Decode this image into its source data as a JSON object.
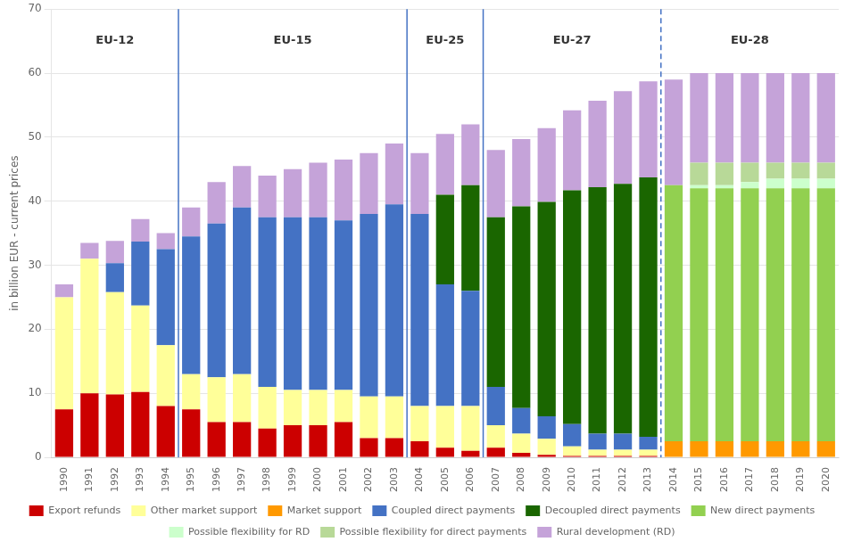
{
  "chart_data": {
    "type": "bar",
    "stacked": true,
    "categories": [
      "1990",
      "1991",
      "1992",
      "1993",
      "1994",
      "1995",
      "1996",
      "1997",
      "1998",
      "1999",
      "2000",
      "2001",
      "2002",
      "2003",
      "2004",
      "2005",
      "2006",
      "2007",
      "2008",
      "2009",
      "2010",
      "2011",
      "2012",
      "2013",
      "2014",
      "2015",
      "2016",
      "2017",
      "2018",
      "2019",
      "2020"
    ],
    "series": [
      {
        "name": "Export refunds",
        "color": "#cc0000",
        "values": [
          7.5,
          10.0,
          9.8,
          10.2,
          8.0,
          7.5,
          5.5,
          5.5,
          4.5,
          5.0,
          5.0,
          5.5,
          3.0,
          3.0,
          2.5,
          1.5,
          1.0,
          1.5,
          0.7,
          0.4,
          0.2,
          0.2,
          0.2,
          0.2,
          0.0,
          0.0,
          0.0,
          0.0,
          0.0,
          0.0,
          0.0
        ]
      },
      {
        "name": "Other market support",
        "color": "#ffff99",
        "values": [
          17.5,
          21.0,
          16.0,
          13.5,
          9.5,
          5.5,
          7.0,
          7.5,
          6.5,
          5.5,
          5.5,
          5.0,
          6.5,
          6.5,
          5.5,
          6.5,
          7.0,
          3.5,
          3.0,
          2.5,
          1.5,
          1.0,
          1.0,
          1.0,
          0.0,
          0.0,
          0.0,
          0.0,
          0.0,
          0.0,
          0.0
        ]
      },
      {
        "name": "Market support",
        "color": "#ff9900",
        "values": [
          0.0,
          0.0,
          0.0,
          0.0,
          0.0,
          0.0,
          0.0,
          0.0,
          0.0,
          0.0,
          0.0,
          0.0,
          0.0,
          0.0,
          0.0,
          0.0,
          0.0,
          0.0,
          0.0,
          0.0,
          0.0,
          0.0,
          0.0,
          0.0,
          2.5,
          2.5,
          2.5,
          2.5,
          2.5,
          2.5,
          2.5
        ]
      },
      {
        "name": "Coupled direct payments",
        "color": "#4472c4",
        "values": [
          0.0,
          0.0,
          4.5,
          10.0,
          15.0,
          21.5,
          24.0,
          26.0,
          26.5,
          27.0,
          27.0,
          26.5,
          28.5,
          30.0,
          30.0,
          19.0,
          18.0,
          6.0,
          4.0,
          3.5,
          3.5,
          2.5,
          2.5,
          2.0,
          0.0,
          0.0,
          0.0,
          0.0,
          0.0,
          0.0,
          0.0
        ]
      },
      {
        "name": "Decoupled direct payments",
        "color": "#1a6600",
        "values": [
          0.0,
          0.0,
          0.0,
          0.0,
          0.0,
          0.0,
          0.0,
          0.0,
          0.0,
          0.0,
          0.0,
          0.0,
          0.0,
          0.0,
          0.0,
          14.0,
          16.5,
          26.5,
          31.5,
          33.5,
          36.5,
          38.5,
          39.0,
          40.5,
          0.0,
          0.0,
          0.0,
          0.0,
          0.0,
          0.0,
          0.0
        ]
      },
      {
        "name": "New direct payments",
        "color": "#92d050",
        "values": [
          0.0,
          0.0,
          0.0,
          0.0,
          0.0,
          0.0,
          0.0,
          0.0,
          0.0,
          0.0,
          0.0,
          0.0,
          0.0,
          0.0,
          0.0,
          0.0,
          0.0,
          0.0,
          0.0,
          0.0,
          0.0,
          0.0,
          0.0,
          0.0,
          40.0,
          39.5,
          39.5,
          39.5,
          39.5,
          39.5,
          39.5
        ]
      },
      {
        "name": "Possible flexibility for RD",
        "color": "#ccffcc",
        "values": [
          0.0,
          0.0,
          0.0,
          0.0,
          0.0,
          0.0,
          0.0,
          0.0,
          0.0,
          0.0,
          0.0,
          0.0,
          0.0,
          0.0,
          0.0,
          0.0,
          0.0,
          0.0,
          0.0,
          0.0,
          0.0,
          0.0,
          0.0,
          0.0,
          0.0,
          0.5,
          0.5,
          1.0,
          1.5,
          1.5,
          1.5
        ]
      },
      {
        "name": "Possible flexibility for direct payments",
        "color": "#b8d998",
        "values": [
          0.0,
          0.0,
          0.0,
          0.0,
          0.0,
          0.0,
          0.0,
          0.0,
          0.0,
          0.0,
          0.0,
          0.0,
          0.0,
          0.0,
          0.0,
          0.0,
          0.0,
          0.0,
          0.0,
          0.0,
          0.0,
          0.0,
          0.0,
          0.0,
          0.0,
          3.5,
          3.5,
          3.0,
          2.5,
          2.5,
          2.5
        ]
      },
      {
        "name": "Rural development (RD)",
        "color": "#c5a3d9",
        "values": [
          2.0,
          2.5,
          3.5,
          3.5,
          2.5,
          4.5,
          6.5,
          6.5,
          6.5,
          7.5,
          8.5,
          9.5,
          9.5,
          9.5,
          9.5,
          9.5,
          9.5,
          10.5,
          10.5,
          11.5,
          12.5,
          13.5,
          14.5,
          15.0,
          16.5,
          14.0,
          14.0,
          14.0,
          14.0,
          14.0,
          14.0
        ]
      }
    ],
    "ylabel": "in billion EUR - current prices",
    "ylim": [
      0,
      70
    ],
    "yticks": [
      0,
      10,
      20,
      30,
      40,
      50,
      60,
      70
    ],
    "grid": true,
    "legend": "bottom",
    "annotations": [
      {
        "text": "EU-12",
        "x_start": "1990",
        "x_end": "1994",
        "y": 66,
        "line_after": "1994",
        "line_style": "solid",
        "color": "#4472c4"
      },
      {
        "text": "EU-15",
        "x_start": "1995",
        "x_end": "2003",
        "y": 66,
        "line_after": "2003",
        "line_style": "solid",
        "color": "#4472c4"
      },
      {
        "text": "EU-25",
        "x_start": "2004",
        "x_end": "2006",
        "y": 66,
        "line_after": "2006",
        "line_style": "solid",
        "color": "#4472c4"
      },
      {
        "text": "EU-27",
        "x_start": "2007",
        "x_end": "2013",
        "y": 66,
        "line_after": "2013",
        "line_style": "dashed",
        "color": "#4472c4"
      },
      {
        "text": "EU-28",
        "x_start": "2014",
        "x_end": "2020",
        "y": 66,
        "line_after": null,
        "line_style": "dashed",
        "color": "#4472c4"
      }
    ]
  }
}
